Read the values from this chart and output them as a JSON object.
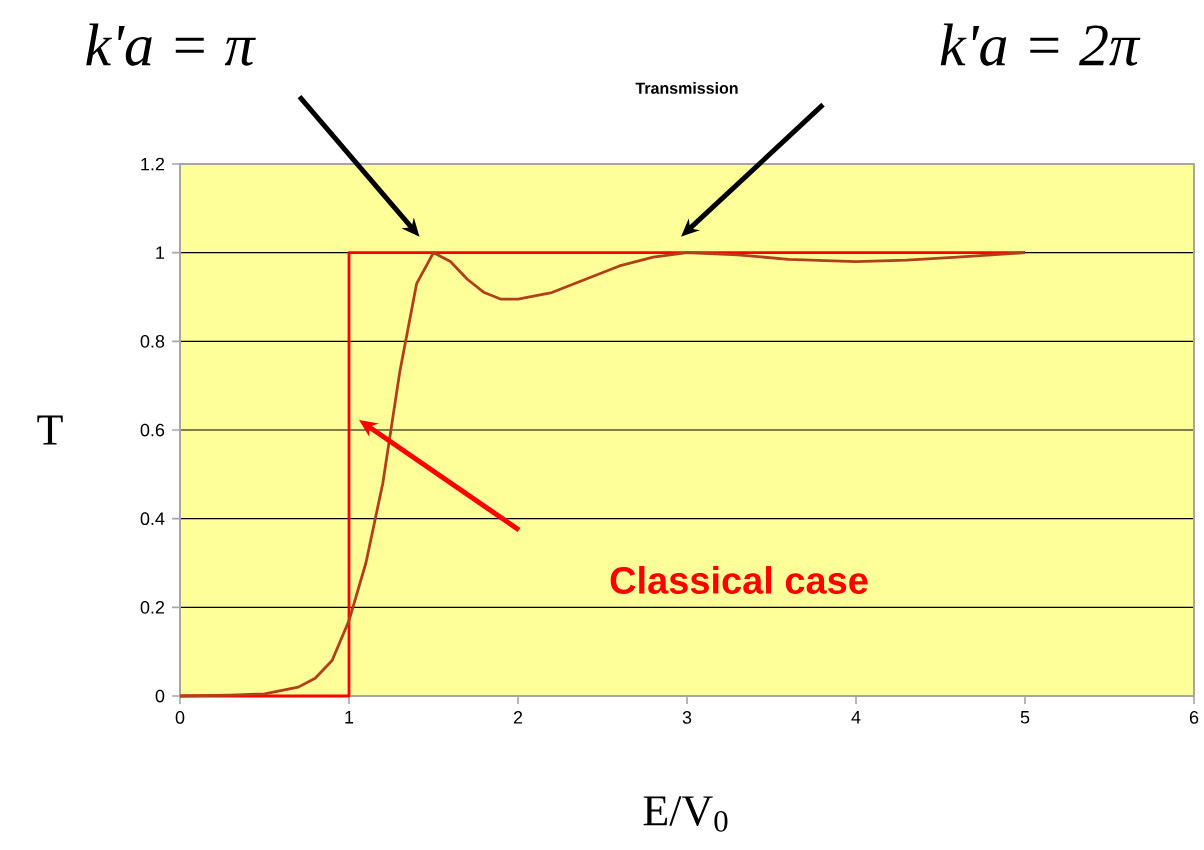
{
  "chart_data": {
    "type": "line",
    "title": "Transmission",
    "xlabel": "E/V$_{0}$",
    "ylabel": "T",
    "xlim": [
      0,
      6
    ],
    "xticks": [
      0,
      1,
      2,
      3,
      4,
      5,
      6
    ],
    "ylim": [
      0,
      1.2
    ],
    "yticks": [
      0,
      0.2,
      0.4,
      0.6,
      0.8,
      1,
      1.2
    ],
    "grid": "y",
    "series": [
      {
        "color": "#ff0000",
        "x": [
          0,
          1,
          1,
          5
        ],
        "values": [
          0,
          0,
          1,
          1
        ]
      },
      {
        "color": "#b0401a",
        "x": [
          0,
          0.3,
          0.5,
          0.7,
          0.8,
          0.9,
          1.0,
          1.1,
          1.2,
          1.3,
          1.4,
          1.5,
          1.6,
          1.7,
          1.8,
          1.9,
          2.0,
          2.2,
          2.4,
          2.6,
          2.8,
          3.0,
          3.3,
          3.6,
          4.0,
          4.3,
          4.6,
          5.0
        ],
        "values": [
          0,
          0.002,
          0.005,
          0.02,
          0.04,
          0.08,
          0.17,
          0.3,
          0.48,
          0.73,
          0.93,
          1.0,
          0.98,
          0.94,
          0.91,
          0.895,
          0.895,
          0.91,
          0.94,
          0.97,
          0.99,
          1.0,
          0.995,
          0.985,
          0.98,
          0.983,
          0.99,
          1.0
        ]
      }
    ],
    "annotations": [
      "k'a = π",
      "k'a = 2π",
      "Classical case"
    ]
  }
}
